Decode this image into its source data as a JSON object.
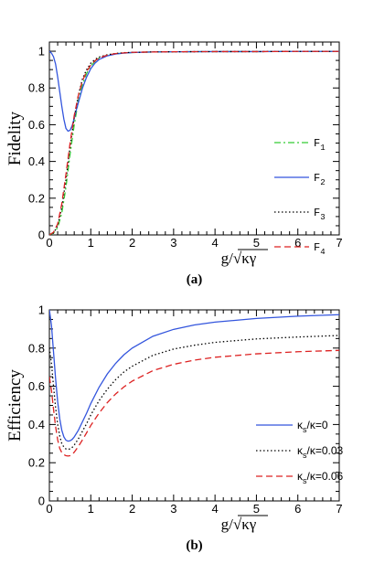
{
  "chart_data": [
    {
      "panel": "(a)",
      "type": "line",
      "ylabel": "Fidelity",
      "xlabel": "g/√κγ",
      "xlim": [
        0,
        7
      ],
      "ylim": [
        0,
        1.05
      ],
      "xticks": [
        "0",
        "1",
        "2",
        "3",
        "4",
        "5",
        "6",
        "7"
      ],
      "yticks": [
        "0",
        "0.2",
        "0.4",
        "0.6",
        "0.8",
        "1"
      ],
      "legend_position": "right",
      "series": [
        {
          "name": "F1",
          "base": "F",
          "sub": "1",
          "color": "#33cc33",
          "dash": "7,3,2,3",
          "x": [
            0,
            0.1,
            0.2,
            0.3,
            0.4,
            0.5,
            0.6,
            0.7,
            0.8,
            0.9,
            1.0,
            1.1,
            1.2,
            1.4,
            1.6,
            1.8,
            2.0,
            2.5,
            3.0,
            4.0,
            5.0,
            6.0,
            7.0
          ],
          "y": [
            0.0,
            0.01,
            0.04,
            0.12,
            0.26,
            0.44,
            0.6,
            0.73,
            0.82,
            0.88,
            0.92,
            0.945,
            0.962,
            0.978,
            0.986,
            0.99,
            0.993,
            0.996,
            0.997,
            0.998,
            0.998,
            0.999,
            0.999
          ]
        },
        {
          "name": "F2",
          "base": "F",
          "sub": "2",
          "color": "#3355dd",
          "dash": "",
          "x": [
            0,
            0.05,
            0.1,
            0.15,
            0.2,
            0.25,
            0.3,
            0.35,
            0.4,
            0.45,
            0.5,
            0.55,
            0.6,
            0.65,
            0.7,
            0.8,
            0.9,
            1.0,
            1.1,
            1.2,
            1.4,
            1.6,
            1.8,
            2.0,
            2.5,
            3.0,
            4.0,
            5.0,
            6.0,
            7.0
          ],
          "y": [
            1.0,
            0.99,
            0.97,
            0.93,
            0.86,
            0.78,
            0.7,
            0.63,
            0.58,
            0.565,
            0.57,
            0.595,
            0.635,
            0.68,
            0.72,
            0.8,
            0.86,
            0.905,
            0.935,
            0.955,
            0.975,
            0.985,
            0.99,
            0.993,
            0.996,
            0.997,
            0.998,
            0.998,
            0.999,
            0.999
          ]
        },
        {
          "name": "F3",
          "base": "F",
          "sub": "3",
          "color": "#000000",
          "dash": "1.5,2.5",
          "x": [
            0,
            0.1,
            0.2,
            0.3,
            0.4,
            0.5,
            0.6,
            0.7,
            0.8,
            0.9,
            1.0,
            1.1,
            1.2,
            1.4,
            1.6,
            1.8,
            2.0,
            2.5,
            3.0,
            4.0,
            5.0,
            6.0,
            7.0
          ],
          "y": [
            0.0,
            0.01,
            0.05,
            0.15,
            0.3,
            0.48,
            0.64,
            0.76,
            0.85,
            0.9,
            0.935,
            0.955,
            0.968,
            0.981,
            0.988,
            0.992,
            0.994,
            0.996,
            0.997,
            0.998,
            0.998,
            0.999,
            0.999
          ]
        },
        {
          "name": "F4",
          "base": "F",
          "sub": "4",
          "color": "#dd2222",
          "dash": "7,4",
          "x": [
            0,
            0.1,
            0.2,
            0.3,
            0.4,
            0.5,
            0.6,
            0.7,
            0.8,
            0.9,
            1.0,
            1.1,
            1.2,
            1.4,
            1.6,
            1.8,
            2.0,
            2.5,
            3.0,
            4.0,
            5.0,
            6.0,
            7.0
          ],
          "y": [
            0.0,
            0.015,
            0.06,
            0.17,
            0.33,
            0.5,
            0.65,
            0.76,
            0.84,
            0.89,
            0.925,
            0.948,
            0.963,
            0.979,
            0.987,
            0.991,
            0.994,
            0.996,
            0.997,
            0.998,
            0.998,
            0.999,
            0.999
          ]
        }
      ]
    },
    {
      "panel": "(b)",
      "type": "line",
      "ylabel": "Efficiency",
      "xlabel": "g/√κγ",
      "xlim": [
        0,
        7
      ],
      "ylim": [
        0,
        1.0
      ],
      "xticks": [
        "0",
        "1",
        "2",
        "3",
        "4",
        "5",
        "6",
        "7"
      ],
      "yticks": [
        "0",
        "0.2",
        "0.4",
        "0.6",
        "0.8",
        "1"
      ],
      "legend_position": "right",
      "series": [
        {
          "name": "κs/κ=0",
          "base": "κ",
          "sub": "s",
          "tail": "/κ=0",
          "color": "#3355dd",
          "dash": "",
          "x": [
            0,
            0.05,
            0.1,
            0.15,
            0.2,
            0.25,
            0.3,
            0.35,
            0.4,
            0.45,
            0.5,
            0.55,
            0.6,
            0.7,
            0.8,
            0.9,
            1.0,
            1.2,
            1.4,
            1.6,
            1.8,
            2.0,
            2.5,
            3.0,
            3.5,
            4.0,
            5.0,
            6.0,
            7.0
          ],
          "y": [
            1.0,
            0.92,
            0.78,
            0.64,
            0.52,
            0.43,
            0.37,
            0.335,
            0.318,
            0.313,
            0.315,
            0.322,
            0.335,
            0.37,
            0.415,
            0.46,
            0.51,
            0.595,
            0.665,
            0.72,
            0.765,
            0.8,
            0.862,
            0.898,
            0.921,
            0.936,
            0.955,
            0.967,
            0.975
          ]
        },
        {
          "name": "κs/κ=0.03",
          "base": "κ",
          "sub": "s",
          "tail": "/κ=0.03",
          "color": "#000000",
          "dash": "1.5,2.5",
          "x": [
            0,
            0.05,
            0.1,
            0.15,
            0.2,
            0.25,
            0.3,
            0.35,
            0.4,
            0.45,
            0.5,
            0.55,
            0.6,
            0.7,
            0.8,
            0.9,
            1.0,
            1.2,
            1.4,
            1.6,
            1.8,
            2.0,
            2.5,
            3.0,
            3.5,
            4.0,
            5.0,
            6.0,
            7.0
          ],
          "y": [
            0.8,
            0.72,
            0.6,
            0.49,
            0.4,
            0.34,
            0.3,
            0.282,
            0.272,
            0.27,
            0.272,
            0.28,
            0.292,
            0.325,
            0.365,
            0.405,
            0.45,
            0.525,
            0.585,
            0.635,
            0.675,
            0.705,
            0.762,
            0.795,
            0.815,
            0.83,
            0.848,
            0.858,
            0.866
          ]
        },
        {
          "name": "κs/κ=0.06",
          "base": "κ",
          "sub": "s",
          "tail": "/κ=0.06",
          "color": "#dd2222",
          "dash": "7,4",
          "x": [
            0,
            0.05,
            0.1,
            0.15,
            0.2,
            0.25,
            0.3,
            0.35,
            0.4,
            0.45,
            0.5,
            0.55,
            0.6,
            0.7,
            0.8,
            0.9,
            1.0,
            1.2,
            1.4,
            1.6,
            1.8,
            2.0,
            2.5,
            3.0,
            3.5,
            4.0,
            5.0,
            6.0,
            7.0
          ],
          "y": [
            0.65,
            0.58,
            0.48,
            0.39,
            0.32,
            0.275,
            0.253,
            0.242,
            0.237,
            0.235,
            0.237,
            0.243,
            0.255,
            0.285,
            0.32,
            0.357,
            0.395,
            0.46,
            0.515,
            0.56,
            0.597,
            0.627,
            0.682,
            0.715,
            0.737,
            0.752,
            0.77,
            0.781,
            0.788
          ]
        }
      ]
    }
  ]
}
